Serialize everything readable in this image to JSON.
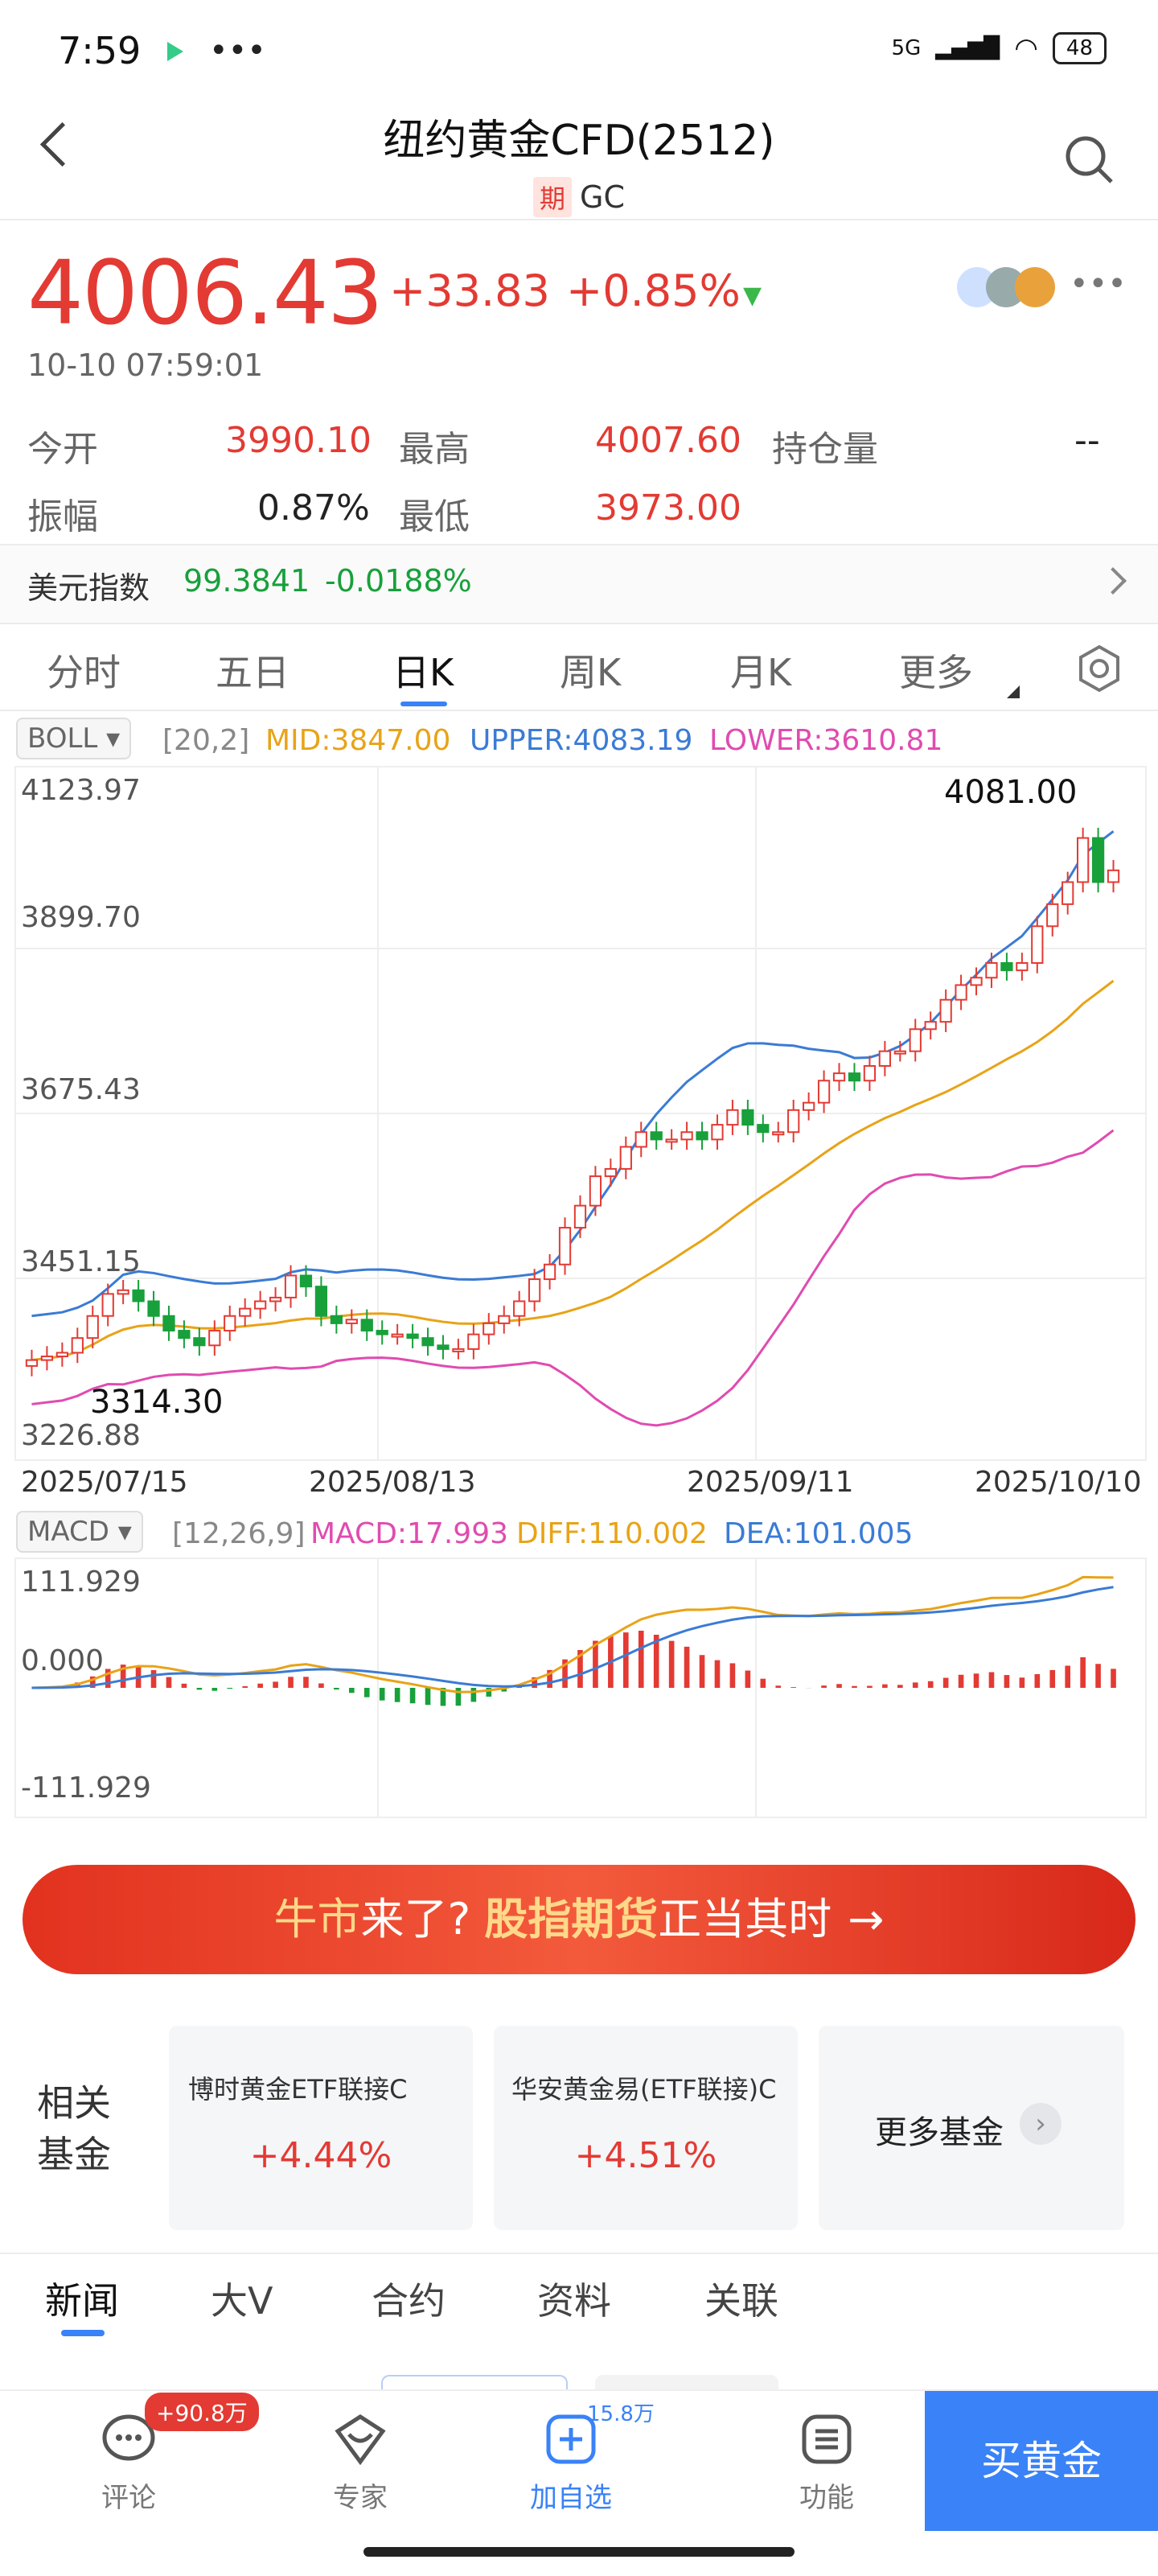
{
  "status_bar": {
    "time": "7:59",
    "network": "5G",
    "battery": "48"
  },
  "header": {
    "title": "纽约黄金CFD(2512)",
    "tag": "期",
    "code": "GC"
  },
  "quote": {
    "price": "4006.43",
    "change": "+33.83",
    "change_pct": "+0.85%",
    "datetime": "10-10 07:59:01",
    "stats": {
      "open_label": "今开",
      "open": "3990.10",
      "high_label": "最高",
      "high": "4007.60",
      "oi_label": "持仓量",
      "oi": "--",
      "amp_label": "振幅",
      "amp": "0.87%",
      "low_label": "最低",
      "low": "3973.00"
    },
    "index": {
      "label": "美元指数",
      "value": "99.3841",
      "change": "-0.0188%"
    }
  },
  "period_tabs": [
    "分时",
    "五日",
    "日K",
    "周K",
    "月K",
    "更多"
  ],
  "active_tab": "日K",
  "boll": {
    "label": "BOLL",
    "params": "[20,2]",
    "mid": "MID:3847.00",
    "upper": "UPPER:4083.19",
    "lower": "LOWER:3610.81",
    "colors": {
      "mid": "#e8a317",
      "upper": "#3a7bd5",
      "lower": "#e04bb0"
    }
  },
  "kline_axis": {
    "y_labels": [
      "4123.97",
      "3899.70",
      "3675.43",
      "3451.15",
      "3226.88"
    ],
    "x_labels": [
      "2025/07/15",
      "2025/08/13",
      "2025/09/11",
      "2025/10/10"
    ],
    "max_marker": "4081.00",
    "min_marker": "3314.30"
  },
  "macd": {
    "label": "MACD",
    "params": "[12,26,9]",
    "macd": "MACD:17.993",
    "diff": "DIFF:110.002",
    "dea": "DEA:101.005",
    "y_labels": [
      "111.929",
      "0.000",
      "-111.929"
    ]
  },
  "banner": {
    "part1": "牛市",
    "part2": "来了? ",
    "part3": "股指期货",
    "part4": "正当其时",
    "arrow": "→"
  },
  "funds": {
    "label_line1": "相关",
    "label_line2": "基金",
    "items": [
      {
        "name": "博时黄金ETF联接C",
        "pct": "+4.44%"
      },
      {
        "name": "华安黄金易(ETF联接)C",
        "pct": "+4.51%"
      }
    ],
    "more": "更多基金"
  },
  "bottom_tabs": [
    "新闻",
    "大V",
    "合约",
    "资料",
    "关联"
  ],
  "nav": {
    "comment": "评论",
    "comment_badge": "+90.8万",
    "expert": "专家",
    "add": "加自选",
    "add_badge": "15.8万",
    "func": "功能",
    "buy": "买黄金"
  },
  "chart_data": [
    {
      "type": "candlestick",
      "title": "",
      "x_range": [
        "2025/07/15",
        "2025/10/10"
      ],
      "ylim": [
        3226.88,
        4123.97
      ],
      "closes": [
        3340,
        3345,
        3350,
        3370,
        3400,
        3430,
        3435,
        3420,
        3400,
        3380,
        3370,
        3360,
        3380,
        3400,
        3410,
        3420,
        3425,
        3455,
        3440,
        3400,
        3390,
        3395,
        3380,
        3375,
        3375,
        3370,
        3360,
        3355,
        3355,
        3375,
        3390,
        3400,
        3420,
        3450,
        3470,
        3520,
        3550,
        3590,
        3600,
        3630,
        3650,
        3640,
        3640,
        3650,
        3640,
        3660,
        3680,
        3660,
        3650,
        3650,
        3680,
        3690,
        3720,
        3730,
        3720,
        3740,
        3760,
        3760,
        3790,
        3800,
        3830,
        3850,
        3860,
        3880,
        3870,
        3880,
        3930,
        3960,
        3990,
        4050,
        3990,
        4006
      ],
      "boll_mid": "MID:3847.00",
      "boll_upper": "UPPER:4083.19",
      "boll_lower": "LOWER:3610.81"
    },
    {
      "type": "bar",
      "title": "",
      "ylim": [
        -111.929,
        111.929
      ],
      "diff": "DIFF:110.002",
      "dea": "DEA:101.005"
    }
  ]
}
